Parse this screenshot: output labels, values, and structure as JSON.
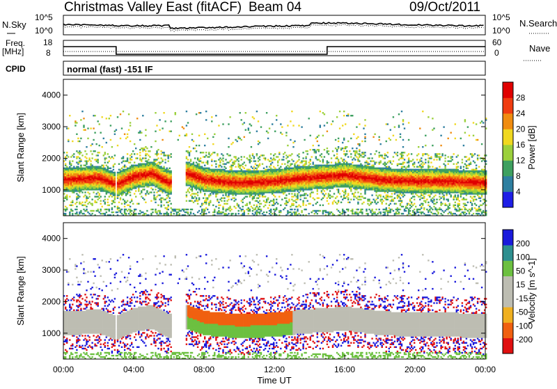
{
  "header": {
    "title": "Christmas Valley East (fitACF)",
    "beam": "Beam 04",
    "date": "09/Oct/2011"
  },
  "noise_panel": {
    "left_label": "N.Sky",
    "right_label": "N.Search",
    "left_ticks": [
      "10^5",
      "10^0"
    ],
    "right_ticks": [
      "10^5",
      "10^0"
    ]
  },
  "freq_panel": {
    "left_label_1": "Freq.",
    "left_label_2": "[MHz]",
    "right_label": "Nave",
    "left_ticks": [
      "18",
      "8"
    ],
    "right_ticks": [
      "60",
      "0"
    ]
  },
  "cpid": {
    "label": "CPID",
    "program": "normal (fast) -151 IF"
  },
  "colors": {
    "power_scale": [
      "#1e1ee6",
      "#2e7fa0",
      "#3ea060",
      "#9bd03c",
      "#f0d820",
      "#f08c10",
      "#f03c10",
      "#e00000"
    ],
    "velocity_scale": [
      "#e01010",
      "#f06010",
      "#f0b020",
      "#bdbdb2",
      "#bdbdb2",
      "#6cc040",
      "#2e8f8f",
      "#1a1adc"
    ],
    "ground_scatter": "#bdbdb2"
  },
  "chart_data": [
    {
      "type": "heatmap",
      "name": "power",
      "xlabel": "Time UT",
      "ylabel": "Slant Range [km]",
      "xlim": [
        0,
        24
      ],
      "ylim": [
        180,
        4500
      ],
      "x_tick_labels": [
        "00:00",
        "04:00",
        "08:00",
        "12:00",
        "16:00",
        "20:00",
        "00:00"
      ],
      "y_tick_labels": [
        "1000",
        "2000",
        "3000",
        "4000"
      ],
      "colorbar": {
        "label": "Power [dB]",
        "ticks": [
          "4",
          "8",
          "12",
          "16",
          "20",
          "24",
          "28"
        ],
        "range": [
          0,
          30
        ]
      },
      "main_band_center_km": [
        [
          0,
          1300
        ],
        [
          2,
          1350
        ],
        [
          3,
          1150
        ],
        [
          4,
          1400
        ],
        [
          5,
          1500
        ],
        [
          6,
          1200
        ],
        [
          7,
          1500
        ],
        [
          8,
          1300
        ],
        [
          10,
          1200
        ],
        [
          12,
          1250
        ],
        [
          13.5,
          1350
        ],
        [
          15,
          1400
        ],
        [
          16,
          1450
        ],
        [
          18,
          1300
        ],
        [
          20,
          1250
        ],
        [
          22,
          1250
        ],
        [
          24,
          1200
        ]
      ]
    },
    {
      "type": "heatmap",
      "name": "velocity",
      "xlabel": "Time UT",
      "ylabel": "Slant Range [km]",
      "xlim": [
        0,
        24
      ],
      "ylim": [
        180,
        4500
      ],
      "x_tick_labels": [
        "00:00",
        "04:00",
        "08:00",
        "12:00",
        "16:00",
        "20:00",
        "00:00"
      ],
      "y_tick_labels": [
        "1000",
        "2000",
        "3000",
        "4000"
      ],
      "colorbar": {
        "label": "Velocity [m s^-1]",
        "ticks": [
          "200",
          "100",
          "50",
          "15",
          "-15",
          "-50",
          "-100",
          "-200"
        ],
        "range": [
          -250,
          250
        ]
      }
    }
  ]
}
